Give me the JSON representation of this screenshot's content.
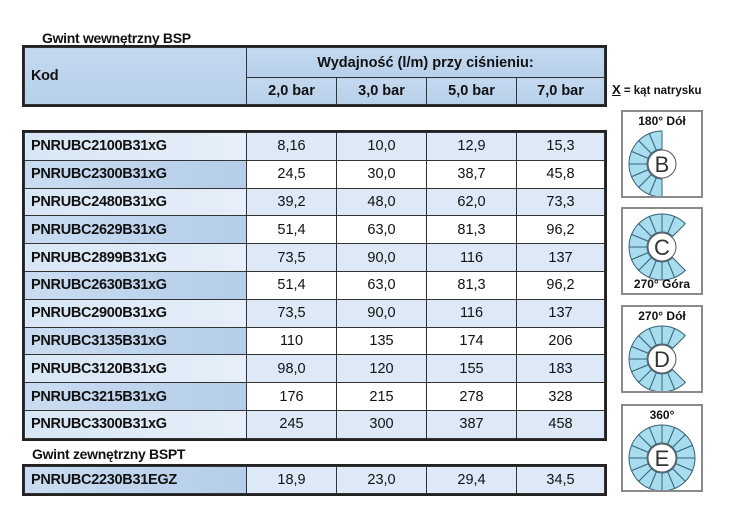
{
  "section1_title": "Gwint wewnętrzny BSP",
  "header": {
    "code": "Kod",
    "flow": "Wydajność (l/m) przy ciśnieniu:",
    "pressures": [
      "2,0 bar",
      "3,0 bar",
      "5,0 bar",
      "7,0 bar"
    ]
  },
  "rows": [
    {
      "code": "PNRUBC2100B31xG",
      "v": [
        "8,16",
        "10,0",
        "12,9",
        "15,3"
      ]
    },
    {
      "code": "PNRUBC2300B31xG",
      "v": [
        "24,5",
        "30,0",
        "38,7",
        "45,8"
      ]
    },
    {
      "code": "PNRUBC2480B31xG",
      "v": [
        "39,2",
        "48,0",
        "62,0",
        "73,3"
      ]
    },
    {
      "code": "PNRUBC2629B31xG",
      "v": [
        "51,4",
        "63,0",
        "81,3",
        "96,2"
      ]
    },
    {
      "code": "PNRUBC2899B31xG",
      "v": [
        "73,5",
        "90,0",
        "116",
        "137"
      ]
    },
    {
      "code": "PNRUBC2630B31xG",
      "v": [
        "51,4",
        "63,0",
        "81,3",
        "96,2"
      ]
    },
    {
      "code": "PNRUBC2900B31xG",
      "v": [
        "73,5",
        "90,0",
        "116",
        "137"
      ]
    },
    {
      "code": "PNRUBC3135B31xG",
      "v": [
        "110",
        "135",
        "174",
        "206"
      ]
    },
    {
      "code": "PNRUBC3120B31xG",
      "v": [
        "98,0",
        "120",
        "155",
        "183"
      ]
    },
    {
      "code": "PNRUBC3215B31xG",
      "v": [
        "176",
        "215",
        "278",
        "328"
      ]
    },
    {
      "code": "PNRUBC3300B31xG",
      "v": [
        "245",
        "300",
        "387",
        "458"
      ]
    }
  ],
  "section2_title": "Gwint zewnętrzny BSPT",
  "rows2": [
    {
      "code": "PNRUBC2230B31EGZ",
      "v": [
        "18,9",
        "23,0",
        "29,4",
        "34,5"
      ]
    }
  ],
  "legend": {
    "x": "X",
    "text": " = kąt natrysku"
  },
  "icons": [
    {
      "letter": "B",
      "label": "180° Dół",
      "label_pos": "top",
      "start": 90,
      "sweep": 180
    },
    {
      "letter": "C",
      "label": "270° Góra",
      "label_pos": "bottom",
      "start": -45,
      "sweep": -270
    },
    {
      "letter": "D",
      "label": "270° Dół",
      "label_pos": "top",
      "start": 45,
      "sweep": 270
    },
    {
      "letter": "E",
      "label": "360°",
      "label_pos": "top",
      "start": 0,
      "sweep": 360
    }
  ],
  "colors": {
    "header_blue": "#b7cfea",
    "row_light": "#dde9f6",
    "spray": "#a8dcef"
  }
}
